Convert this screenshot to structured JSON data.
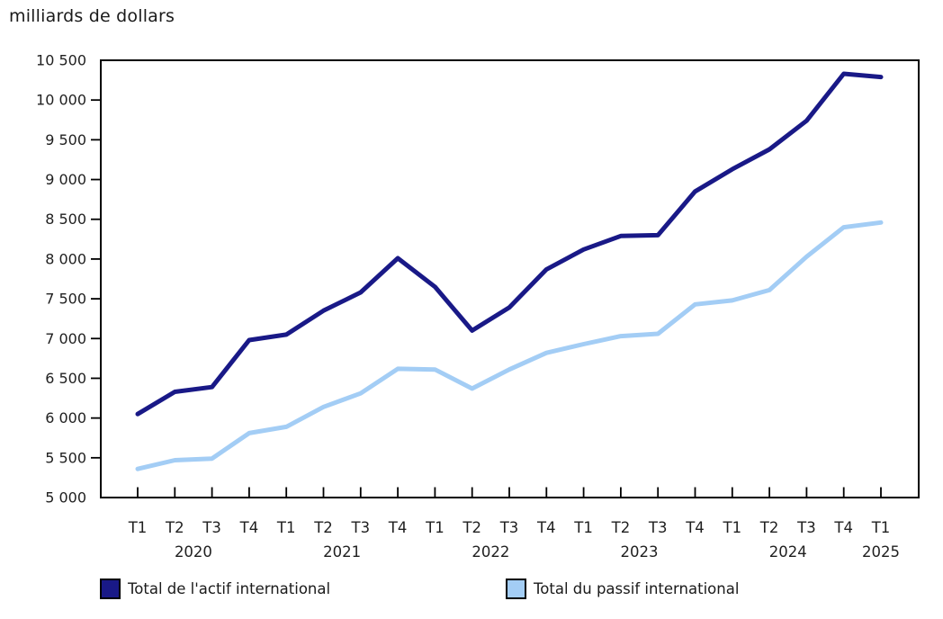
{
  "chart_title": "milliards de dollars",
  "chart_data": {
    "type": "line",
    "title": "milliards de dollars",
    "xlabel": "",
    "ylabel": "milliards de dollars",
    "ylim": [
      5000,
      10500
    ],
    "ytick_step": 500,
    "ytick_labels": [
      "5 000",
      "5 500",
      "6 000",
      "6 500",
      "7 000",
      "7 500",
      "8 000",
      "8 500",
      "9 000",
      "9 500",
      "10 000",
      "10 500"
    ],
    "grid": false,
    "legend_position": "bottom",
    "quarters": [
      "T1",
      "T2",
      "T3",
      "T4",
      "T1",
      "T2",
      "T3",
      "T4",
      "T1",
      "T2",
      "T3",
      "T4",
      "T1",
      "T2",
      "T3",
      "T4",
      "T1",
      "T2",
      "T3",
      "T4",
      "T1"
    ],
    "year_groups": [
      {
        "label": "2020",
        "center_index": 1.5
      },
      {
        "label": "2021",
        "center_index": 5.5
      },
      {
        "label": "2022",
        "center_index": 9.5
      },
      {
        "label": "2023",
        "center_index": 13.5
      },
      {
        "label": "2024",
        "center_index": 17.5
      },
      {
        "label": "2025",
        "center_index": 20
      }
    ],
    "series": [
      {
        "name": "Total de l'actif international",
        "color": "#191987",
        "values": [
          6050,
          6330,
          6390,
          6980,
          7050,
          7350,
          7580,
          8010,
          7650,
          7100,
          7390,
          7870,
          8120,
          8290,
          8300,
          8850,
          9130,
          9380,
          9740,
          10330,
          10290
        ]
      },
      {
        "name": "Total du passif international",
        "color": "#A3CDF5",
        "values": [
          5360,
          5470,
          5490,
          5810,
          5890,
          6140,
          6310,
          6620,
          6610,
          6370,
          6610,
          6820,
          6930,
          7030,
          7060,
          7430,
          7480,
          7610,
          8030,
          8400,
          8460
        ]
      }
    ]
  },
  "colors": {
    "axis": "#000000",
    "tick_text": "#1f1f1f",
    "background": "#ffffff"
  }
}
